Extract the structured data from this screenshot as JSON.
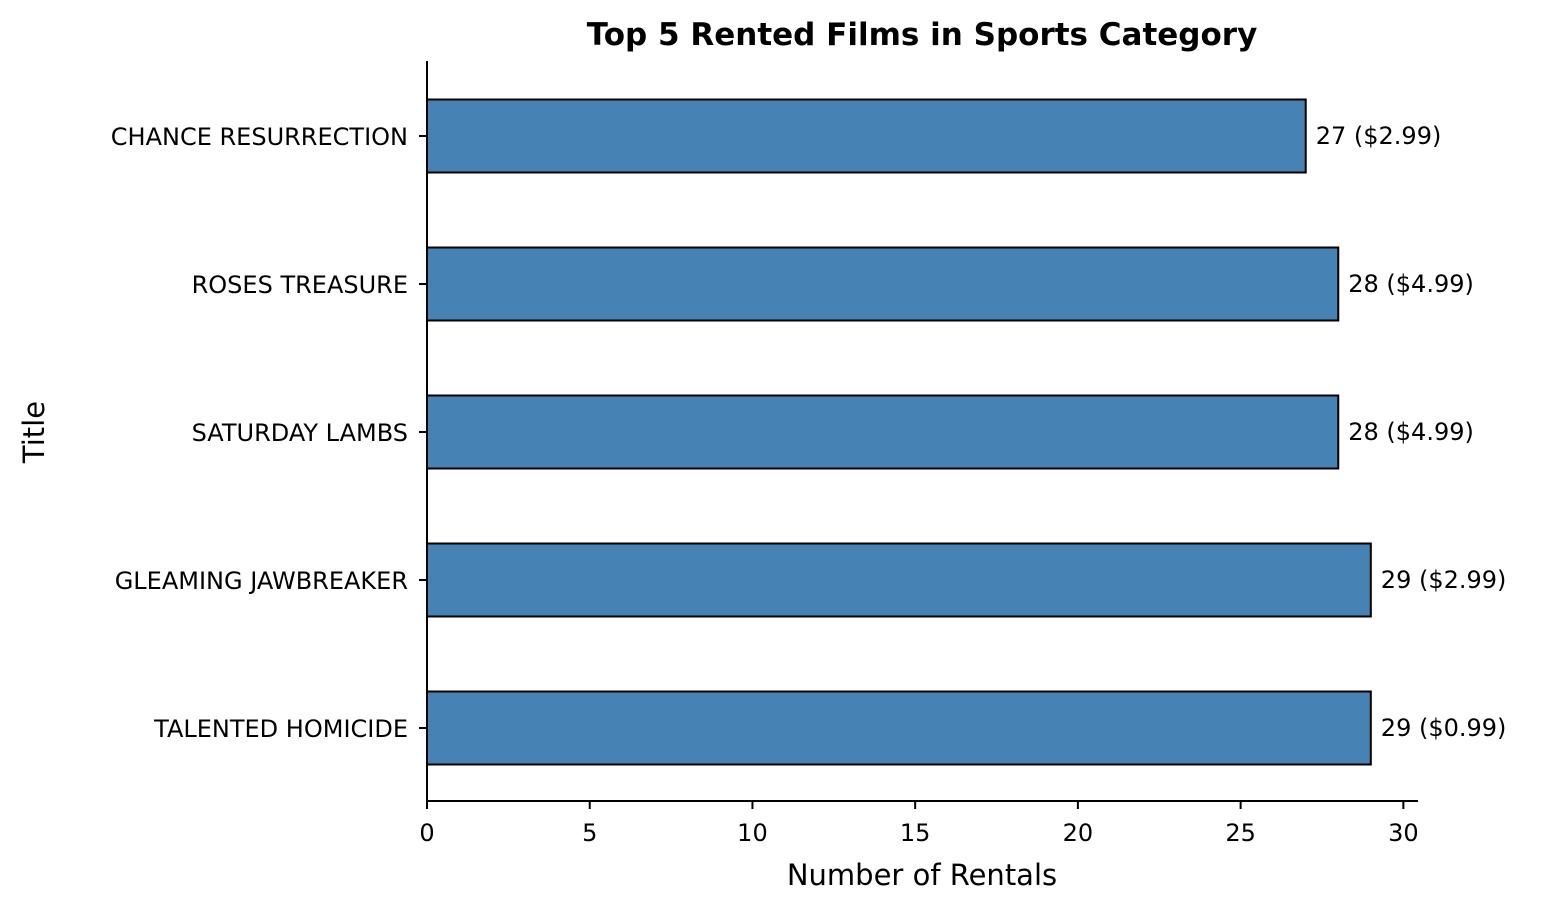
{
  "chart_data": {
    "type": "bar",
    "orientation": "horizontal",
    "title": "Top 5 Rented Films in Sports Category",
    "xlabel": "Number of Rentals",
    "ylabel": "Title",
    "categories": [
      "CHANCE RESURRECTION",
      "ROSES TREASURE",
      "SATURDAY LAMBS",
      "GLEAMING JAWBREAKER",
      "TALENTED HOMICIDE"
    ],
    "values": [
      27,
      28,
      28,
      29,
      29
    ],
    "bar_labels": [
      "27 ($2.99)",
      "28 ($4.99)",
      "28 ($4.99)",
      "29 ($2.99)",
      "29 ($0.99)"
    ],
    "xlim": [
      0,
      30.45
    ],
    "xticks": [
      "0",
      "5",
      "10",
      "15",
      "20",
      "25",
      "30"
    ],
    "grid": false,
    "colors": {
      "bar": "#4682b4",
      "edge": "#000000"
    }
  }
}
